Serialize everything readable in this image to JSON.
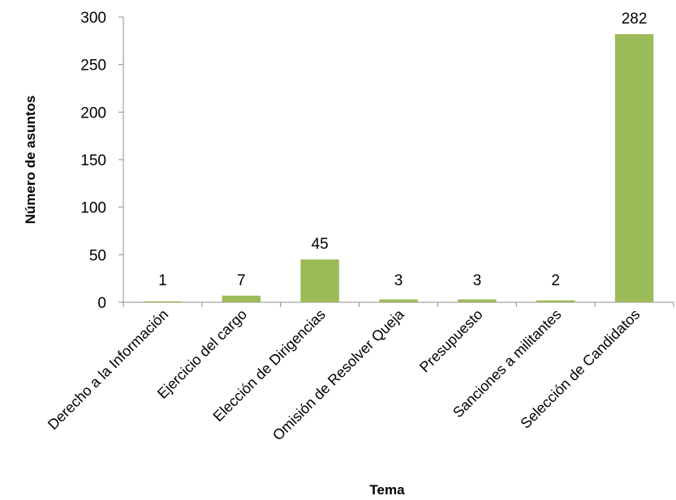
{
  "chart_data": {
    "type": "bar",
    "categories": [
      "Derecho a la Información",
      "Ejercicio del cargo",
      "Elección de Dirigencias",
      "Omisión de Resolver Queja",
      "Presupuesto",
      "Sanciones a militantes",
      "Selección de Candidatos"
    ],
    "values": [
      1,
      7,
      45,
      3,
      3,
      2,
      282
    ],
    "data_labels": [
      "1",
      "7",
      "45",
      "3",
      "3",
      "2",
      "282"
    ],
    "title": "",
    "xlabel": "Tema",
    "ylabel": "Número de asuntos",
    "ylim": [
      0,
      300
    ],
    "yticks": [
      0,
      50,
      100,
      150,
      200,
      250,
      300
    ],
    "ytick_labels": [
      "0",
      "50",
      "100",
      "150",
      "200",
      "250",
      "300"
    ],
    "grid": false,
    "legend": "none",
    "bar_color": "#9bbb59"
  }
}
